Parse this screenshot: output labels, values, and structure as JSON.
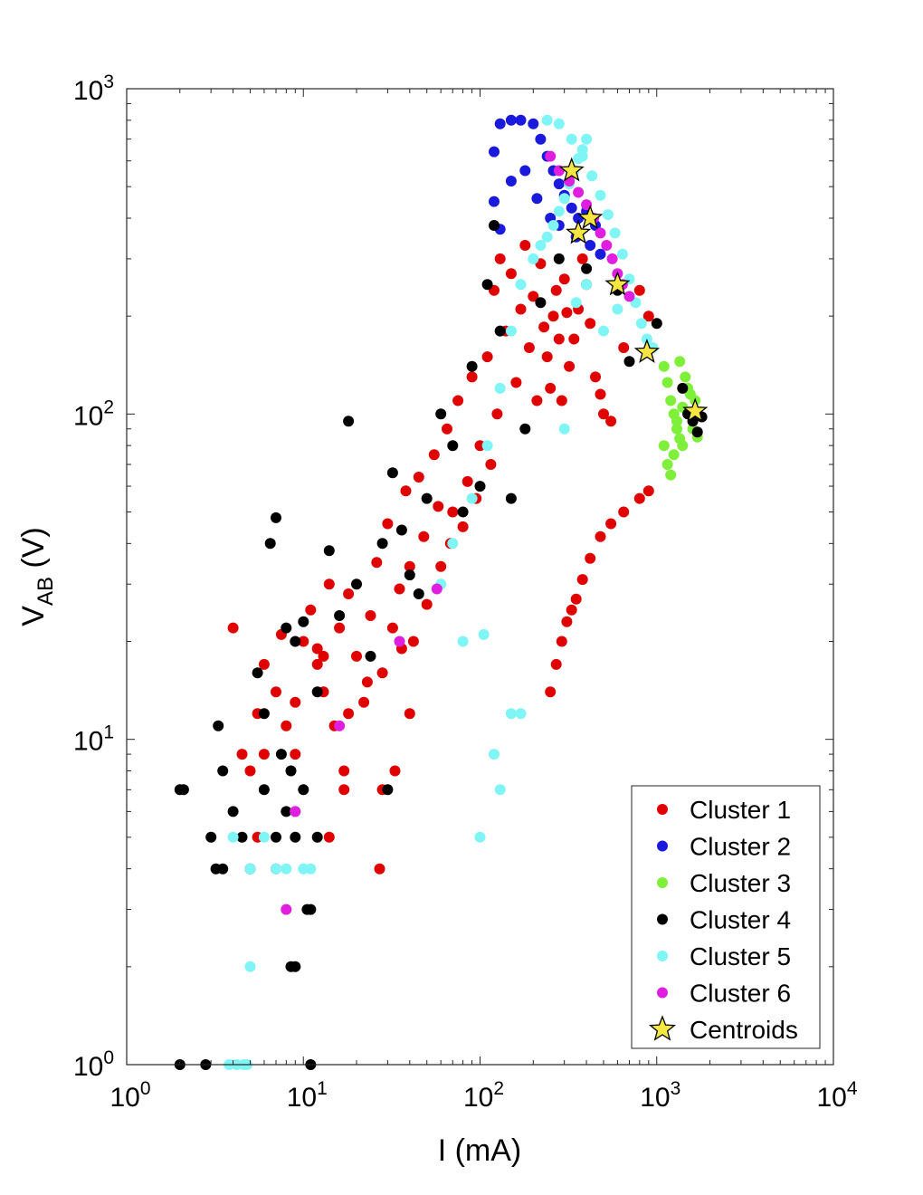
{
  "chart_data": {
    "type": "scatter",
    "xscale": "log",
    "yscale": "log",
    "xlim": [
      1,
      10000
    ],
    "ylim": [
      1,
      1000
    ],
    "xlabel": "I (mA)",
    "ylabel": {
      "main": "V",
      "sub": "AB",
      "unit": " (V)"
    },
    "x_ticks": [
      {
        "value": 1,
        "base": "10",
        "exp": "0"
      },
      {
        "value": 10,
        "base": "10",
        "exp": "1"
      },
      {
        "value": 100,
        "base": "10",
        "exp": "2"
      },
      {
        "value": 1000,
        "base": "10",
        "exp": "3"
      },
      {
        "value": 10000,
        "base": "10",
        "exp": "4"
      }
    ],
    "y_ticks": [
      {
        "value": 1,
        "base": "10",
        "exp": "0"
      },
      {
        "value": 10,
        "base": "10",
        "exp": "1"
      },
      {
        "value": 100,
        "base": "10",
        "exp": "2"
      },
      {
        "value": 1000,
        "base": "10",
        "exp": "3"
      }
    ],
    "grid": false,
    "legend_position": "bottom-right",
    "series": [
      {
        "name": "Cluster 1",
        "color": "#e00000",
        "points": [
          [
            4,
            22
          ],
          [
            4.5,
            9
          ],
          [
            5,
            8
          ],
          [
            5.5,
            12
          ],
          [
            6,
            17
          ],
          [
            7,
            14
          ],
          [
            7.5,
            21
          ],
          [
            8,
            11
          ],
          [
            9,
            9
          ],
          [
            10,
            20
          ],
          [
            11,
            25
          ],
          [
            12,
            19
          ],
          [
            13,
            14
          ],
          [
            14,
            30
          ],
          [
            15,
            11
          ],
          [
            16,
            22
          ],
          [
            17,
            8
          ],
          [
            18,
            28
          ],
          [
            20,
            18
          ],
          [
            22,
            13
          ],
          [
            24,
            24
          ],
          [
            26,
            35
          ],
          [
            28,
            16
          ],
          [
            30,
            46
          ],
          [
            32,
            22
          ],
          [
            35,
            29
          ],
          [
            38,
            58
          ],
          [
            40,
            34
          ],
          [
            42,
            20
          ],
          [
            45,
            64
          ],
          [
            48,
            42
          ],
          [
            50,
            26
          ],
          [
            55,
            75
          ],
          [
            58,
            52
          ],
          [
            60,
            34
          ],
          [
            65,
            90
          ],
          [
            68,
            40
          ],
          [
            70,
            50
          ],
          [
            75,
            110
          ],
          [
            80,
            45
          ],
          [
            85,
            62
          ],
          [
            90,
            130
          ],
          [
            95,
            55
          ],
          [
            100,
            80
          ],
          [
            110,
            150
          ],
          [
            115,
            70
          ],
          [
            120,
            240
          ],
          [
            125,
            100
          ],
          [
            130,
            300
          ],
          [
            140,
            180
          ],
          [
            150,
            270
          ],
          [
            160,
            125
          ],
          [
            170,
            210
          ],
          [
            180,
            330
          ],
          [
            190,
            160
          ],
          [
            200,
            230
          ],
          [
            210,
            110
          ],
          [
            220,
            290
          ],
          [
            230,
            185
          ],
          [
            240,
            150
          ],
          [
            250,
            120
          ],
          [
            260,
            200
          ],
          [
            270,
            240
          ],
          [
            280,
            170
          ],
          [
            290,
            110
          ],
          [
            300,
            260
          ],
          [
            310,
            205
          ],
          [
            320,
            140
          ],
          [
            340,
            170
          ],
          [
            360,
            210
          ],
          [
            380,
            300
          ],
          [
            400,
            250
          ],
          [
            420,
            190
          ],
          [
            450,
            130
          ],
          [
            480,
            115
          ],
          [
            500,
            100
          ],
          [
            550,
            95
          ],
          [
            650,
            160
          ],
          [
            800,
            240
          ],
          [
            900,
            200
          ],
          [
            250,
            14
          ],
          [
            270,
            17
          ],
          [
            290,
            20
          ],
          [
            310,
            23
          ],
          [
            330,
            25
          ],
          [
            350,
            27
          ],
          [
            380,
            31
          ],
          [
            420,
            36
          ],
          [
            480,
            42
          ],
          [
            550,
            46
          ],
          [
            650,
            50
          ],
          [
            800,
            55
          ],
          [
            900,
            58
          ],
          [
            6,
            9
          ],
          [
            7,
            4
          ],
          [
            9,
            6
          ],
          [
            14,
            5
          ],
          [
            17,
            7
          ],
          [
            27,
            4
          ],
          [
            33,
            8
          ],
          [
            40,
            12
          ],
          [
            28,
            7
          ],
          [
            18,
            12
          ],
          [
            12,
            17
          ],
          [
            9,
            13
          ],
          [
            5.5,
            5
          ],
          [
            13,
            18
          ],
          [
            23,
            15
          ],
          [
            36,
            19
          ]
        ]
      },
      {
        "name": "Cluster 2",
        "color": "#1a1adc",
        "points": [
          [
            120,
            640
          ],
          [
            130,
            780
          ],
          [
            150,
            800
          ],
          [
            170,
            800
          ],
          [
            200,
            780
          ],
          [
            220,
            700
          ],
          [
            240,
            620
          ],
          [
            260,
            560
          ],
          [
            280,
            510
          ],
          [
            300,
            470
          ],
          [
            330,
            430
          ],
          [
            360,
            400
          ],
          [
            400,
            420
          ],
          [
            450,
            380
          ],
          [
            120,
            450
          ],
          [
            150,
            520
          ],
          [
            180,
            560
          ],
          [
            210,
            460
          ],
          [
            250,
            400
          ],
          [
            280,
            380
          ],
          [
            350,
            350
          ],
          [
            420,
            330
          ],
          [
            480,
            310
          ],
          [
            130,
            370
          ]
        ]
      },
      {
        "name": "Cluster 3",
        "color": "#7ff03a",
        "points": [
          [
            1100,
            140
          ],
          [
            1150,
            125
          ],
          [
            1200,
            110
          ],
          [
            1250,
            100
          ],
          [
            1300,
            90
          ],
          [
            1350,
            84
          ],
          [
            1400,
            80
          ],
          [
            1450,
            130
          ],
          [
            1500,
            120
          ],
          [
            1550,
            115
          ],
          [
            1600,
            90
          ],
          [
            1650,
            110
          ],
          [
            1100,
            80
          ],
          [
            1150,
            70
          ],
          [
            1200,
            65
          ],
          [
            1250,
            75
          ],
          [
            1300,
            95
          ],
          [
            1350,
            145
          ],
          [
            1400,
            105
          ],
          [
            1700,
            85
          ]
        ]
      },
      {
        "name": "Cluster 4",
        "color": "#000000",
        "points": [
          [
            2,
            7
          ],
          [
            2.1,
            7
          ],
          [
            3,
            5
          ],
          [
            3.2,
            4
          ],
          [
            3.5,
            8
          ],
          [
            4,
            6
          ],
          [
            4.5,
            5
          ],
          [
            5,
            4
          ],
          [
            6,
            7
          ],
          [
            7,
            5
          ],
          [
            7.5,
            9
          ],
          [
            8,
            6
          ],
          [
            8.5,
            8
          ],
          [
            9,
            5
          ],
          [
            10,
            7
          ],
          [
            11,
            3
          ],
          [
            12,
            5
          ],
          [
            3.3,
            11
          ],
          [
            5.5,
            16
          ],
          [
            7,
            48
          ],
          [
            6.5,
            40
          ],
          [
            8,
            22
          ],
          [
            9,
            20
          ],
          [
            10,
            23
          ],
          [
            12,
            14
          ],
          [
            14,
            38
          ],
          [
            16,
            24
          ],
          [
            18,
            95
          ],
          [
            20,
            30
          ],
          [
            24,
            18
          ],
          [
            28,
            40
          ],
          [
            32,
            66
          ],
          [
            36,
            44
          ],
          [
            40,
            32
          ],
          [
            45,
            28
          ],
          [
            50,
            55
          ],
          [
            60,
            100
          ],
          [
            70,
            80
          ],
          [
            80,
            50
          ],
          [
            90,
            140
          ],
          [
            100,
            60
          ],
          [
            110,
            250
          ],
          [
            120,
            380
          ],
          [
            130,
            180
          ],
          [
            150,
            55
          ],
          [
            180,
            90
          ],
          [
            220,
            220
          ],
          [
            280,
            300
          ],
          [
            400,
            280
          ],
          [
            600,
            240
          ],
          [
            700,
            145
          ],
          [
            1000,
            190
          ],
          [
            1400,
            120
          ],
          [
            1500,
            100
          ],
          [
            1600,
            95
          ],
          [
            1700,
            88
          ],
          [
            1800,
            98
          ],
          [
            8.5,
            2
          ],
          [
            9,
            2
          ],
          [
            10.5,
            3
          ],
          [
            2,
            1
          ],
          [
            2.8,
            1
          ],
          [
            11,
            1
          ],
          [
            3.5,
            4
          ],
          [
            30,
            7
          ],
          [
            6,
            12
          ]
        ]
      },
      {
        "name": "Cluster 5",
        "color": "#7ff5f5",
        "points": [
          [
            3.8,
            1
          ],
          [
            4.2,
            1
          ],
          [
            4.6,
            1
          ],
          [
            4.8,
            1
          ],
          [
            5,
            2
          ],
          [
            4,
            5
          ],
          [
            5,
            4
          ],
          [
            6,
            5
          ],
          [
            7,
            4
          ],
          [
            8,
            4
          ],
          [
            9,
            6
          ],
          [
            10,
            4
          ],
          [
            11,
            4
          ],
          [
            100,
            5
          ],
          [
            120,
            9
          ],
          [
            130,
            7
          ],
          [
            150,
            12
          ],
          [
            170,
            12
          ],
          [
            105,
            21
          ],
          [
            80,
            20
          ],
          [
            60,
            30
          ],
          [
            70,
            40
          ],
          [
            90,
            55
          ],
          [
            110,
            80
          ],
          [
            130,
            120
          ],
          [
            150,
            180
          ],
          [
            170,
            250
          ],
          [
            200,
            300
          ],
          [
            220,
            330
          ],
          [
            240,
            350
          ],
          [
            260,
            380
          ],
          [
            280,
            420
          ],
          [
            300,
            460
          ],
          [
            320,
            510
          ],
          [
            340,
            560
          ],
          [
            360,
            610
          ],
          [
            380,
            650
          ],
          [
            400,
            700
          ],
          [
            240,
            800
          ],
          [
            280,
            780
          ],
          [
            330,
            700
          ],
          [
            380,
            620
          ],
          [
            430,
            540
          ],
          [
            480,
            470
          ],
          [
            530,
            410
          ],
          [
            580,
            360
          ],
          [
            640,
            310
          ],
          [
            700,
            260
          ],
          [
            760,
            220
          ],
          [
            820,
            190
          ],
          [
            880,
            170
          ],
          [
            950,
            160
          ],
          [
            300,
            90
          ],
          [
            350,
            220
          ],
          [
            400,
            250
          ],
          [
            500,
            180
          ],
          [
            600,
            210
          ]
        ]
      },
      {
        "name": "Cluster 6",
        "color": "#e01ee0",
        "points": [
          [
            8,
            3
          ],
          [
            9,
            6
          ],
          [
            16,
            11
          ],
          [
            35,
            20
          ],
          [
            57,
            29
          ],
          [
            250,
            620
          ],
          [
            280,
            560
          ],
          [
            320,
            520
          ],
          [
            360,
            480
          ],
          [
            400,
            440
          ],
          [
            440,
            400
          ],
          [
            480,
            360
          ],
          [
            520,
            330
          ],
          [
            560,
            300
          ],
          [
            600,
            270
          ],
          [
            640,
            250
          ],
          [
            700,
            230
          ]
        ]
      },
      {
        "name": "Centroids",
        "color": "#f5e642",
        "marker": "star",
        "points": [
          [
            330,
            560
          ],
          [
            420,
            400
          ],
          [
            360,
            360
          ],
          [
            600,
            250
          ],
          [
            880,
            155
          ],
          [
            1650,
            102
          ]
        ]
      }
    ]
  }
}
